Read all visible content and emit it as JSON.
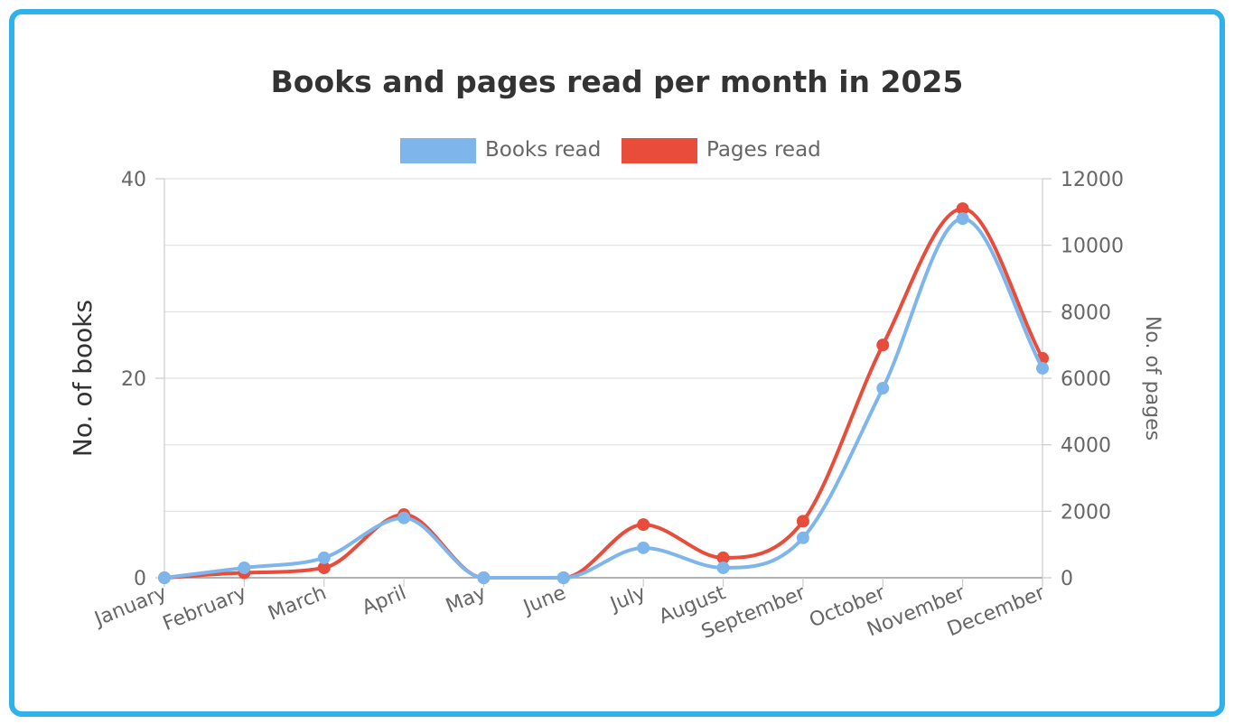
{
  "chart_data": {
    "type": "line",
    "title": "Books and pages read per month in 2025",
    "categories": [
      "January",
      "February",
      "March",
      "April",
      "May",
      "June",
      "July",
      "August",
      "September",
      "October",
      "November",
      "December"
    ],
    "series": [
      {
        "name": "Books read",
        "axis": "left",
        "color": "#7eb6ec",
        "values": [
          0,
          1,
          2,
          6,
          0,
          0,
          3,
          1,
          4,
          19,
          36,
          21
        ]
      },
      {
        "name": "Pages read",
        "axis": "right",
        "color": "#e84c3a",
        "values": [
          0,
          150,
          300,
          1900,
          0,
          0,
          1600,
          600,
          1700,
          7000,
          11100,
          6600
        ]
      }
    ],
    "y_left": {
      "label": "No. of books",
      "min": 0,
      "max": 40,
      "ticks": [
        "0",
        "20",
        "40"
      ]
    },
    "y_right": {
      "label": "No. of pages",
      "min": 0,
      "max": 12000,
      "ticks": [
        "0",
        "2000",
        "4000",
        "6000",
        "8000",
        "10000",
        "12000"
      ]
    },
    "legend": "top",
    "grid": true
  }
}
